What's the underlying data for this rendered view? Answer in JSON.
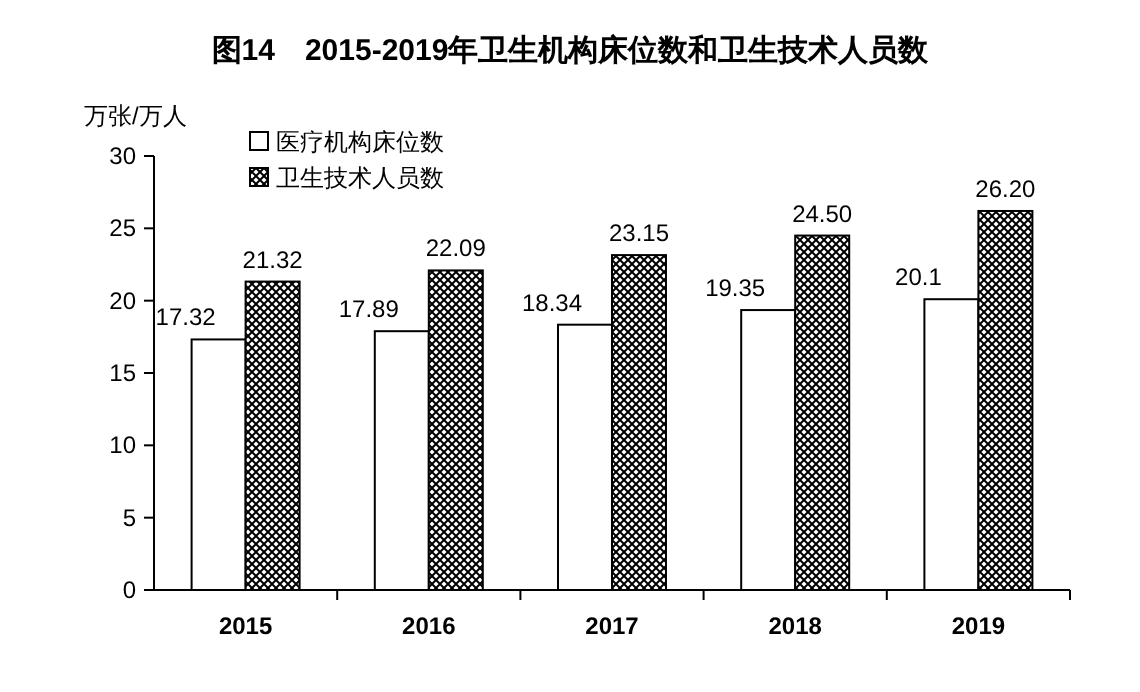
{
  "chart_data": {
    "type": "bar",
    "title": "图14　2015-2019年卫生机构床位数和卫生技术人员数",
    "ylabel": "万张/万人",
    "categories": [
      "2015",
      "2016",
      "2017",
      "2018",
      "2019"
    ],
    "series": [
      {
        "name": "医疗机构床位数",
        "color": "#ffffff",
        "values": [
          17.32,
          17.89,
          18.34,
          19.35,
          20.1
        ],
        "value_labels": [
          "17.32",
          "17.89",
          "18.34",
          "19.35",
          "20.1"
        ]
      },
      {
        "name": "卫生技术人员数",
        "color": "#000000",
        "values": [
          21.32,
          22.09,
          23.15,
          24.5,
          26.2
        ],
        "value_labels": [
          "21.32",
          "22.09",
          "23.15",
          "24.50",
          "26.20"
        ]
      }
    ],
    "ylim": [
      0,
      30
    ],
    "yticks": [
      0,
      5,
      10,
      15,
      20,
      25,
      30
    ],
    "legend": "top left"
  }
}
